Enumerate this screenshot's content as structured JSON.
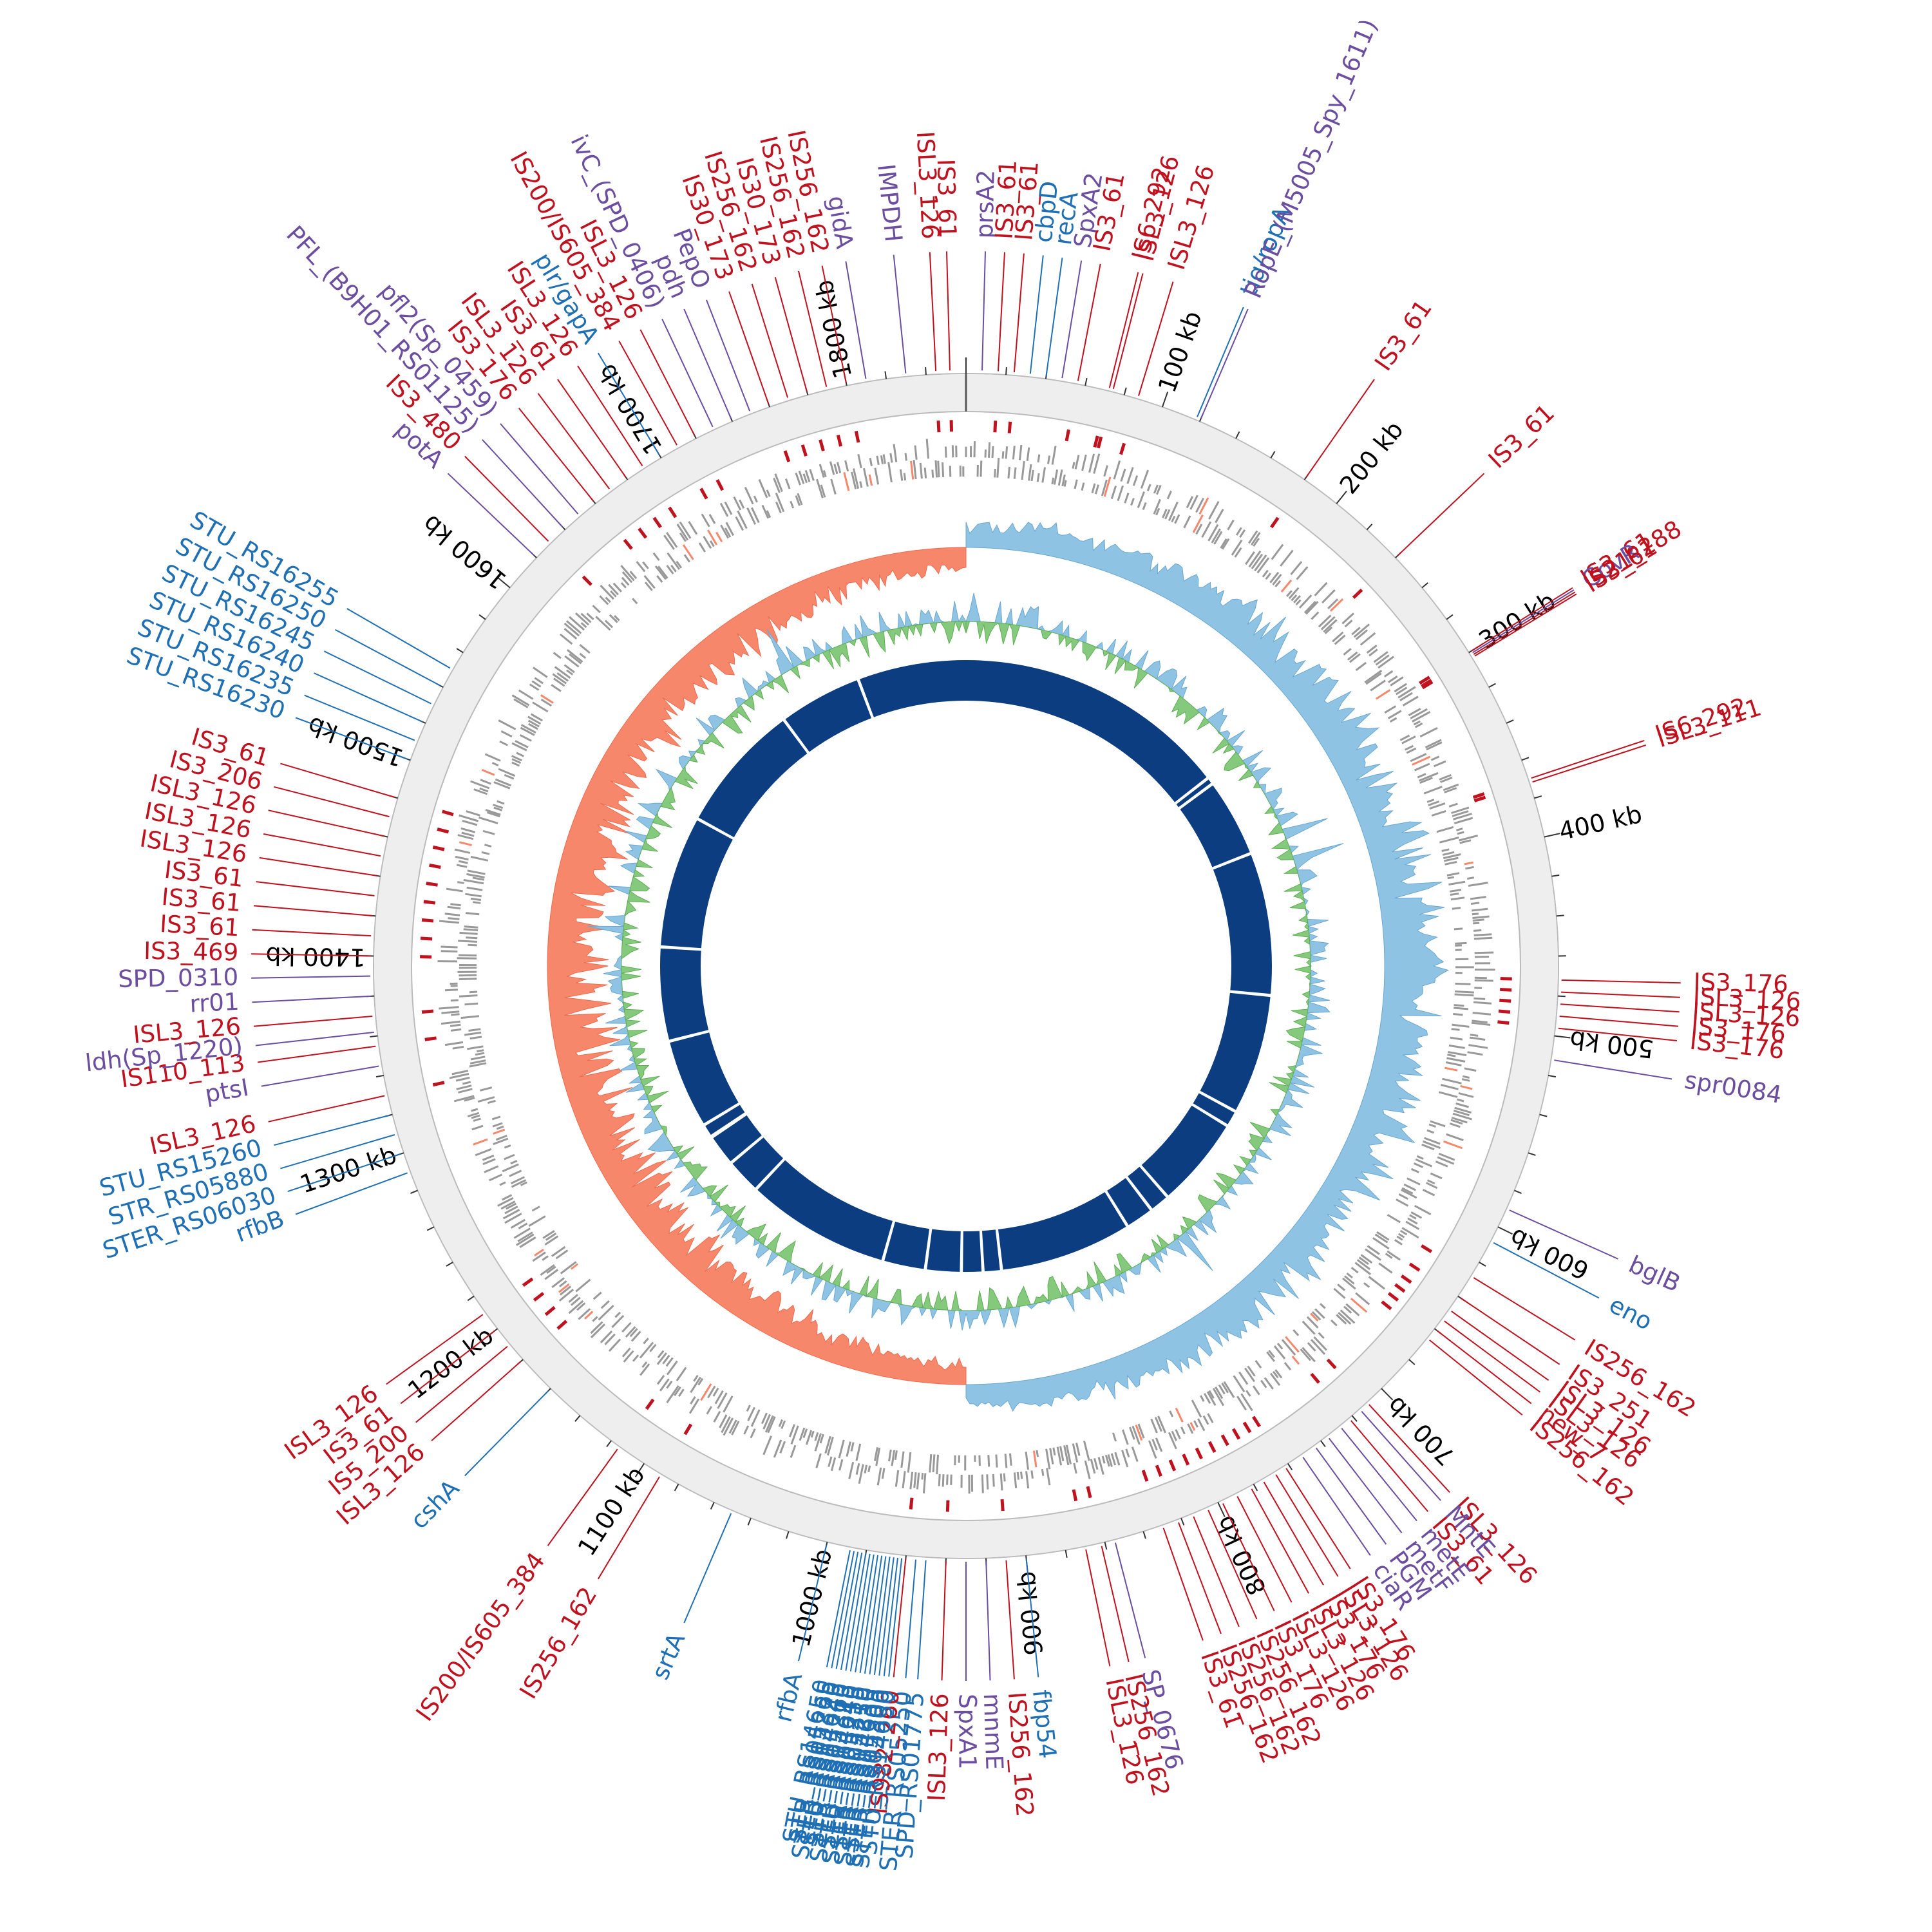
{
  "genome": {
    "length_kb": 1860,
    "tick_labels": [
      {
        "kb": 100,
        "text": "100 kb"
      },
      {
        "kb": 200,
        "text": "200 kb"
      },
      {
        "kb": 300,
        "text": "300 kb"
      },
      {
        "kb": 400,
        "text": "400 kb"
      },
      {
        "kb": 500,
        "text": "500 kb"
      },
      {
        "kb": 600,
        "text": "600 kb"
      },
      {
        "kb": 700,
        "text": "700 kb"
      },
      {
        "kb": 800,
        "text": "800 kb"
      },
      {
        "kb": 900,
        "text": "900 kb"
      },
      {
        "kb": 1000,
        "text": "1000 kb"
      },
      {
        "kb": 1100,
        "text": "1100 kb"
      },
      {
        "kb": 1200,
        "text": "1200 kb"
      },
      {
        "kb": 1300,
        "text": "1300 kb"
      },
      {
        "kb": 1400,
        "text": "1400 kb"
      },
      {
        "kb": 1500,
        "text": "1500 kb"
      },
      {
        "kb": 1600,
        "text": "1600 kb"
      },
      {
        "kb": 1700,
        "text": "1700 kb"
      },
      {
        "kb": 1800,
        "text": "1800 kb"
      }
    ]
  },
  "colors": {
    "is_element": "#c0111f",
    "gene_blue": "#1f6fb5",
    "gene_purple": "#6b4ea0",
    "backbone": "#0b3d80",
    "gc_positive": "#8fc3e3",
    "gc_negative": "#f7876b",
    "gc_content": "#85c97c",
    "orf": "#999999",
    "outer_ring": "#eeeeee"
  },
  "blocks": [
    {
      "start": 0,
      "end": 268
    },
    {
      "start": 271,
      "end": 275
    },
    {
      "start": 278,
      "end": 352
    },
    {
      "start": 355,
      "end": 492
    },
    {
      "start": 495,
      "end": 610
    },
    {
      "start": 613,
      "end": 626
    },
    {
      "start": 629,
      "end": 716
    },
    {
      "start": 719,
      "end": 736
    },
    {
      "start": 739,
      "end": 764
    },
    {
      "start": 767,
      "end": 894
    },
    {
      "start": 897,
      "end": 912
    },
    {
      "start": 915,
      "end": 933
    },
    {
      "start": 936,
      "end": 968
    },
    {
      "start": 971,
      "end": 1010
    },
    {
      "start": 1013,
      "end": 1152
    },
    {
      "start": 1155,
      "end": 1187
    },
    {
      "start": 1190,
      "end": 1218
    },
    {
      "start": 1222,
      "end": 1232
    },
    {
      "start": 1235,
      "end": 1320
    },
    {
      "start": 1323,
      "end": 1412
    },
    {
      "start": 1415,
      "end": 1542
    },
    {
      "start": 1545,
      "end": 1670
    },
    {
      "start": 1673,
      "end": 1752
    },
    {
      "start": 1755,
      "end": 1860
    }
  ],
  "features": [
    {
      "kb": 74,
      "label": "ISL3_126",
      "type": "is",
      "ang": 46.5
    },
    {
      "kb": 72,
      "label": "IS6_292",
      "type": "is",
      "ang": 50.5
    },
    {
      "kb": 87,
      "label": "ISL3_126",
      "type": "is",
      "ang": 55.0
    },
    {
      "kb": 118,
      "label": "tig/ropA",
      "type": "gene",
      "ang": 59.0
    },
    {
      "kb": 120,
      "label": "RopE_(M5005_Spy_1611)",
      "type": "pgene",
      "ang": 63.0
    },
    {
      "kb": 180,
      "label": "IS3_61",
      "type": "is",
      "ang": 73.0
    },
    {
      "kb": 240,
      "label": "IS3_61",
      "type": "is",
      "ang": 79.0
    },
    {
      "kb": 300,
      "label": "IS3_61",
      "type": "is",
      "ang": 92.0
    },
    {
      "kb": 301,
      "label": "CovR",
      "type": "pgene",
      "ang": 95.5
    },
    {
      "kb": 302,
      "label": "IS21_288",
      "type": "is",
      "ang": 99.0
    },
    {
      "kb": 303,
      "label": "IS3_61",
      "type": "is",
      "ang": 102.5
    },
    {
      "kb": 370,
      "label": "IS6_292",
      "type": "is",
      "ang": 111.5
    },
    {
      "kb": 372,
      "label": "ISL3_111",
      "type": "is",
      "ang": 114.5
    },
    {
      "kb": 472,
      "label": "IS3_176",
      "type": "is",
      "ang": 127.5
    },
    {
      "kb": 478,
      "label": "ISL3_126",
      "type": "is",
      "ang": 131.0
    },
    {
      "kb": 484,
      "label": "ISL3_126",
      "type": "is",
      "ang": 134.5
    },
    {
      "kb": 490,
      "label": "IS3_176",
      "type": "is",
      "ang": 138.0
    },
    {
      "kb": 496,
      "label": "IS3_176",
      "type": "is",
      "ang": 141.5
    },
    {
      "kb": 512,
      "label": "spr0084",
      "type": "pgene",
      "ang": 145.0
    },
    {
      "kb": 590,
      "label": "bglB",
      "type": "pgene",
      "ang": 152.5
    },
    {
      "kb": 608,
      "label": "eno",
      "type": "gene",
      "ang": 156.0
    },
    {
      "kb": 628,
      "label": "IS256_162",
      "type": "is",
      "ang": 163.0
    },
    {
      "kb": 640,
      "label": "IS3_251",
      "type": "is",
      "ang": 166.5
    },
    {
      "kb": 648,
      "label": "ISL3_126",
      "type": "is",
      "ang": 170.0
    },
    {
      "kb": 654,
      "label": "ISL3_126",
      "type": "is",
      "ang": 173.5
    },
    {
      "kb": 660,
      "label": "new_7",
      "type": "is",
      "ang": 177.0
    },
    {
      "kb": 666,
      "label": "IS256_162",
      "type": "is",
      "ang": 180.5
    },
    {
      "kb": 710,
      "label": "ISL3_126",
      "type": "is",
      "ang": 188.0
    },
    {
      "kb": 715,
      "label": "MntE",
      "type": "pgene",
      "ang": 191.5
    },
    {
      "kb": 722,
      "label": "IS3_61",
      "type": "is",
      "ang": 195.0
    },
    {
      "kb": 728,
      "label": "metE",
      "type": "pgene",
      "ang": 198.5
    },
    {
      "kb": 736,
      "label": "metF",
      "type": "pgene",
      "ang": 201.5
    },
    {
      "kb": 744,
      "label": "PGM",
      "type": "pgene",
      "ang": 204.5
    },
    {
      "kb": 752,
      "label": "ciaR",
      "type": "pgene",
      "ang": 207.5
    },
    {
      "kb": 762,
      "label": "IS3_176",
      "type": "is",
      "ang": 210.5
    },
    {
      "kb": 768,
      "label": "ISL3_126",
      "type": "is",
      "ang": 213.5
    },
    {
      "kb": 775,
      "label": "IS3_176",
      "type": "is",
      "ang": 216.5
    },
    {
      "kb": 782,
      "label": "ISL3_126",
      "type": "is",
      "ang": 219.5
    },
    {
      "kb": 790,
      "label": "ISL3_126",
      "type": "is",
      "ang": 222.5
    },
    {
      "kb": 798,
      "label": "IS3_176",
      "type": "is",
      "ang": 225.5
    },
    {
      "kb": 806,
      "label": "IS256_162",
      "type": "is",
      "ang": 228.5
    },
    {
      "kb": 814,
      "label": "IS256_162",
      "type": "is",
      "ang": 231.5
    },
    {
      "kb": 822,
      "label": "IS256_162",
      "type": "is",
      "ang": 234.5
    },
    {
      "kb": 830,
      "label": "IS3_61",
      "type": "is",
      "ang": 237.5
    },
    {
      "kb": 855,
      "label": "SP_0676",
      "type": "pgene",
      "ang": 240.5
    },
    {
      "kb": 862,
      "label": "IS256_162",
      "type": "is",
      "ang": 243.5
    },
    {
      "kb": 870,
      "label": "ISL3_126",
      "type": "is",
      "ang": 246.5
    },
    {
      "kb": 900,
      "label": "fbp54",
      "type": "gene",
      "ang": 249.5
    },
    {
      "kb": 910,
      "label": "IS256_162",
      "type": "is",
      "ang": 252.5
    },
    {
      "kb": 920,
      "label": "mnmE",
      "type": "pgene",
      "ang": 255.5
    },
    {
      "kb": 930,
      "label": "SpxA1",
      "type": "pgene",
      "ang": 258.5
    },
    {
      "kb": 940,
      "label": "ISL3_126",
      "type": "is",
      "ang": 261.5
    },
    {
      "kb": 950,
      "label": "SPD_RS01775",
      "type": "gene",
      "ang": 264.5
    },
    {
      "kb": 955,
      "label": "STER_RS05250",
      "type": "gene",
      "ang": 267.5
    },
    {
      "kb": 960,
      "label": "IS982_260",
      "type": "is",
      "ang": 270.5
    },
    {
      "kb": 962,
      "label": "STU_RS14630",
      "type": "gene",
      "ang": 273.5
    },
    {
      "kb": 964,
      "label": "STER_RS05300",
      "type": "gene",
      "ang": 276.5
    },
    {
      "kb": 966,
      "label": "STER_RS05305",
      "type": "gene",
      "ang": 279.5
    },
    {
      "kb": 968,
      "label": "STR_RS14635",
      "type": "gene",
      "ang": 282.5
    },
    {
      "kb": 970,
      "label": "STER_RS05250",
      "type": "gene",
      "ang": 285.5
    },
    {
      "kb": 972,
      "label": "STR_RS05310",
      "type": "gene",
      "ang": 288.5
    },
    {
      "kb": 974,
      "label": "STER_RS05255",
      "type": "gene",
      "ang": 291.5
    },
    {
      "kb": 976,
      "label": "STU_RS14640",
      "type": "gene",
      "ang": 294.5
    },
    {
      "kb": 978,
      "label": "STER_RS05315",
      "type": "gene",
      "ang": 297.5
    },
    {
      "kb": 980,
      "label": "STR_RS05260",
      "type": "gene",
      "ang": 300.5
    },
    {
      "kb": 982,
      "label": "STU_RS14645",
      "type": "gene",
      "ang": 303.5
    },
    {
      "kb": 984,
      "label": "STER_RS05320",
      "type": "gene",
      "ang": 306.5
    },
    {
      "kb": 986,
      "label": "STR_RS05265",
      "type": "gene",
      "ang": 309.5
    },
    {
      "kb": 988,
      "label": "STU_RS14650",
      "type": "gene",
      "ang": 312.5
    },
    {
      "kb": 1000,
      "label": "rfbA",
      "type": "gene",
      "ang": 315.5
    },
    {
      "kb": 1090,
      "label": "IS256_162",
      "type": "is",
      "ang": 318.5
    },
    {
      "kb": 1115,
      "label": "IS200/IS605_384",
      "type": "is",
      "ang": 321.5
    },
    {
      "kb": 1160,
      "label": "cshA",
      "type": "gene",
      "ang": 324.5
    },
    {
      "kb": 1180,
      "label": "ISL3_126",
      "type": "is",
      "ang": 327.5
    },
    {
      "kb": 1190,
      "label": "IS5_200",
      "type": "is",
      "ang": 330.5
    },
    {
      "kb": 1200,
      "label": "IS3_61",
      "type": "is",
      "ang": 333.5
    },
    {
      "kb": 1210,
      "label": "ISL3_126",
      "type": "is",
      "ang": 336.5
    },
    {
      "kb": 1050,
      "label": "srtA",
      "type": "gene",
      "ang": 339.5
    },
    {
      "kb": 1290,
      "label": "rfbB",
      "type": "gene",
      "ang": 342.5
    },
    {
      "kb": 1300,
      "label": "STER_RS06030",
      "type": "gene",
      "ang": 345.5
    },
    {
      "kb": 1310,
      "label": "STR_RS05880",
      "type": "gene",
      "ang": 348.5
    },
    {
      "kb": 1320,
      "label": "STU_RS15260",
      "type": "gene",
      "ang": 351.5
    },
    {
      "kb": 1330,
      "label": "ISL3_126",
      "type": "is",
      "ang": 354.5
    },
    {
      "kb": 1345,
      "label": "ptsI",
      "type": "pgene",
      "ang": 357.5
    },
    {
      "kb": 1355,
      "label": "IS110_113",
      "type": "is",
      "ang": 0.5
    },
    {
      "kb": 1362,
      "label": "ldh(Sp_1220)",
      "type": "pgene",
      "ang": 3.5
    },
    {
      "kb": 1370,
      "label": "ISL3_126",
      "type": "is",
      "ang": 6.5
    },
    {
      "kb": 1380,
      "label": "rr01",
      "type": "pgene",
      "ang": 9.5
    },
    {
      "kb": 1390,
      "label": "SPD_0310",
      "type": "pgene",
      "ang": 12.5
    },
    {
      "kb": 1400,
      "label": "IS3_469",
      "type": "is",
      "ang": 15.5
    },
    {
      "kb": 1410,
      "label": "IS3_61",
      "type": "is",
      "ang": 18.5
    },
    {
      "kb": 1420,
      "label": "IS3_61",
      "type": "is",
      "ang": 21.5
    },
    {
      "kb": 1430,
      "label": "IS3_61",
      "type": "is",
      "ang": 24.5
    },
    {
      "kb": 1440,
      "label": "ISL3_126",
      "type": "is",
      "ang": 27.5
    },
    {
      "kb": 1450,
      "label": "ISL3_126",
      "type": "is",
      "ang": 30.5
    },
    {
      "kb": 1460,
      "label": "ISL3_126",
      "type": "is",
      "ang": 33.5
    },
    {
      "kb": 1470,
      "label": "IS3_206",
      "type": "is",
      "ang": 36.5
    },
    {
      "kb": 1480,
      "label": "IS3_61",
      "type": "is",
      "ang": 39.5
    },
    {
      "kb": 1500,
      "label": "STU_RS16230",
      "type": "gene",
      "ang": 43.0
    },
    {
      "kb": 1510,
      "label": "STU_RS16235",
      "type": "gene",
      "ang": 46.0
    },
    {
      "kb": 1520,
      "label": "STU_RS16240",
      "type": "gene",
      "ang": 49.0
    },
    {
      "kb": 1530,
      "label": "STU_RS16245",
      "type": "gene",
      "ang": 52.0
    },
    {
      "kb": 1540,
      "label": "STU_RS16250",
      "type": "gene",
      "ang": 55.0
    },
    {
      "kb": 1550,
      "label": "STU_RS16255",
      "type": "gene",
      "ang": 58.0
    },
    {
      "kb": 1620,
      "label": "potA",
      "type": "pgene",
      "ang": 62.0
    },
    {
      "kb": 1630,
      "label": "IS3_480",
      "type": "is",
      "ang": 65.0
    },
    {
      "kb": 1640,
      "label": "PFL_(B9H01_RS01125)",
      "type": "pgene",
      "ang": 68.0
    },
    {
      "kb": 1650,
      "label": "pfl2(Sp_0459)",
      "type": "pgene",
      "ang": 71.0
    },
    {
      "kb": 1660,
      "label": "IS3_176",
      "type": "is",
      "ang": 74.0
    },
    {
      "kb": 1670,
      "label": "ISL3_126",
      "type": "is",
      "ang": 77.0
    },
    {
      "kb": 1680,
      "label": "IS3_61",
      "type": "is",
      "ang": 80.0
    },
    {
      "kb": 1690,
      "label": "ISL3_126",
      "type": "is",
      "ang": 83.0
    },
    {
      "kb": 1700,
      "label": "plr/gapA",
      "type": "gene",
      "ang": 86.0
    },
    {
      "kb": 1710,
      "label": "IS200/IS605_384",
      "type": "is",
      "ang": 89.0
    },
    {
      "kb": 1720,
      "label": "ISL3_126",
      "type": "is",
      "ang": 92.0
    },
    {
      "kb": 1730,
      "label": "ivC_(SPD_0406)",
      "type": "pgene",
      "ang": 95.0
    },
    {
      "kb": 1740,
      "label": "pdh",
      "type": "pgene",
      "ang": 98.0
    },
    {
      "kb": 1750,
      "label": "PepO",
      "type": "pgene",
      "ang": 101.0
    },
    {
      "kb": 1760,
      "label": "IS30_173",
      "type": "is",
      "ang": 104.0
    },
    {
      "kb": 1770,
      "label": "IS256_162",
      "type": "is",
      "ang": 107.0
    },
    {
      "kb": 1780,
      "label": "IS30_173",
      "type": "is",
      "ang": 110.0
    },
    {
      "kb": 1790,
      "label": "IS256_162",
      "type": "is",
      "ang": 113.0
    },
    {
      "kb": 1800,
      "label": "IS256_162",
      "type": "is",
      "ang": 116.0
    },
    {
      "kb": 1810,
      "label": "gidA",
      "type": "pgene",
      "ang": 119.0
    },
    {
      "kb": 1830,
      "label": "IMPDH",
      "type": "pgene",
      "ang": 122.0
    },
    {
      "kb": 1845,
      "label": "ISL3_126",
      "type": "is",
      "ang": 125.0
    },
    {
      "kb": 1852,
      "label": "IS3_61",
      "type": "is",
      "ang": 128.0
    },
    {
      "kb": 8,
      "label": "prsA2",
      "type": "pgene",
      "ang": 131.0
    },
    {
      "kb": 16,
      "label": "IS3_61",
      "type": "is",
      "ang": 134.0
    },
    {
      "kb": 24,
      "label": "IS3_61",
      "type": "is",
      "ang": 137.0
    },
    {
      "kb": 32,
      "label": "cbpD",
      "type": "gene",
      "ang": 140.0
    },
    {
      "kb": 40,
      "label": "recA",
      "type": "gene",
      "ang": 143.0
    },
    {
      "kb": 48,
      "label": "SpxA2",
      "type": "pgene",
      "ang": 146.0
    },
    {
      "kb": 56,
      "label": "IS3_61",
      "type": "is",
      "ang": 149.0
    }
  ]
}
